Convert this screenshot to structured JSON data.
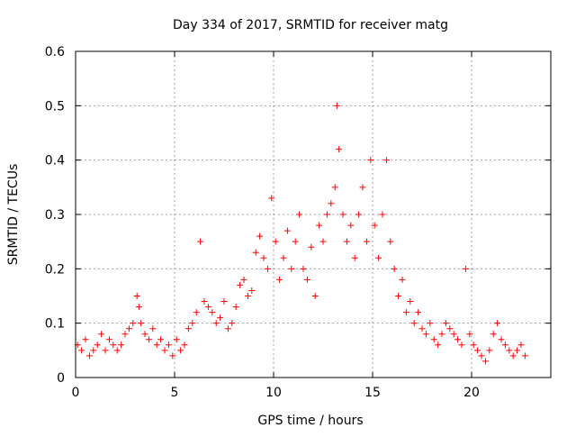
{
  "chart_data": {
    "type": "scatter",
    "title": "Day 334 of 2017, SRMTID for receiver matg",
    "xlabel": "GPS time / hours",
    "ylabel": "SRMTID / TECUs",
    "xlim": [
      0,
      24
    ],
    "ylim": [
      0,
      0.6
    ],
    "x_ticks": [
      0,
      5,
      10,
      15,
      20
    ],
    "x_tick_labels": [
      "0",
      "5",
      "10",
      "15",
      "20"
    ],
    "y_ticks": [
      0,
      0.1,
      0.2,
      0.3,
      0.4,
      0.5,
      0.6
    ],
    "y_tick_labels": [
      "0",
      "0.1",
      "0.2",
      "0.3",
      "0.4",
      "0.5",
      "0.6"
    ],
    "grid": true,
    "marker": "plus",
    "marker_color": "#ff0000",
    "series": [
      {
        "name": "SRMTID",
        "x": [
          0.1,
          0.3,
          0.5,
          0.7,
          0.9,
          1.1,
          1.3,
          1.5,
          1.7,
          1.9,
          2.1,
          2.3,
          2.5,
          2.7,
          2.9,
          3.1,
          3.2,
          3.3,
          3.5,
          3.7,
          3.9,
          4.1,
          4.3,
          4.5,
          4.7,
          4.9,
          5.1,
          5.3,
          5.5,
          5.7,
          5.9,
          6.1,
          6.3,
          6.5,
          6.7,
          6.9,
          7.1,
          7.3,
          7.5,
          7.7,
          7.9,
          8.1,
          8.3,
          8.5,
          8.7,
          8.9,
          9.1,
          9.3,
          9.5,
          9.7,
          9.9,
          10.1,
          10.3,
          10.5,
          10.7,
          10.9,
          11.1,
          11.3,
          11.5,
          11.7,
          11.9,
          12.1,
          12.3,
          12.5,
          12.7,
          12.9,
          13.1,
          13.2,
          13.3,
          13.5,
          13.7,
          13.9,
          14.1,
          14.3,
          14.5,
          14.7,
          14.9,
          15.1,
          15.3,
          15.5,
          15.7,
          15.9,
          16.1,
          16.3,
          16.5,
          16.7,
          16.9,
          17.1,
          17.3,
          17.5,
          17.7,
          17.9,
          18.1,
          18.3,
          18.5,
          18.7,
          18.9,
          19.1,
          19.3,
          19.5,
          19.7,
          19.9,
          20.1,
          20.3,
          20.5,
          20.7,
          20.9,
          21.1,
          21.3,
          21.5,
          21.7,
          21.9,
          22.1,
          22.3,
          22.5,
          22.7
        ],
        "y": [
          0.06,
          0.05,
          0.07,
          0.04,
          0.05,
          0.06,
          0.08,
          0.05,
          0.07,
          0.06,
          0.05,
          0.06,
          0.08,
          0.09,
          0.1,
          0.15,
          0.13,
          0.1,
          0.08,
          0.07,
          0.09,
          0.06,
          0.07,
          0.05,
          0.06,
          0.04,
          0.07,
          0.05,
          0.06,
          0.09,
          0.1,
          0.12,
          0.25,
          0.14,
          0.13,
          0.12,
          0.1,
          0.11,
          0.14,
          0.09,
          0.1,
          0.13,
          0.17,
          0.18,
          0.15,
          0.16,
          0.23,
          0.26,
          0.22,
          0.2,
          0.33,
          0.25,
          0.18,
          0.22,
          0.27,
          0.2,
          0.25,
          0.3,
          0.2,
          0.18,
          0.24,
          0.15,
          0.28,
          0.25,
          0.3,
          0.32,
          0.35,
          0.5,
          0.42,
          0.3,
          0.25,
          0.28,
          0.22,
          0.3,
          0.35,
          0.25,
          0.4,
          0.28,
          0.22,
          0.3,
          0.4,
          0.25,
          0.2,
          0.15,
          0.18,
          0.12,
          0.14,
          0.1,
          0.12,
          0.09,
          0.08,
          0.1,
          0.07,
          0.06,
          0.08,
          0.1,
          0.09,
          0.08,
          0.07,
          0.06,
          0.2,
          0.08,
          0.06,
          0.05,
          0.04,
          0.03,
          0.05,
          0.08,
          0.1,
          0.07,
          0.06,
          0.05,
          0.04,
          0.05,
          0.06,
          0.04
        ]
      }
    ]
  }
}
